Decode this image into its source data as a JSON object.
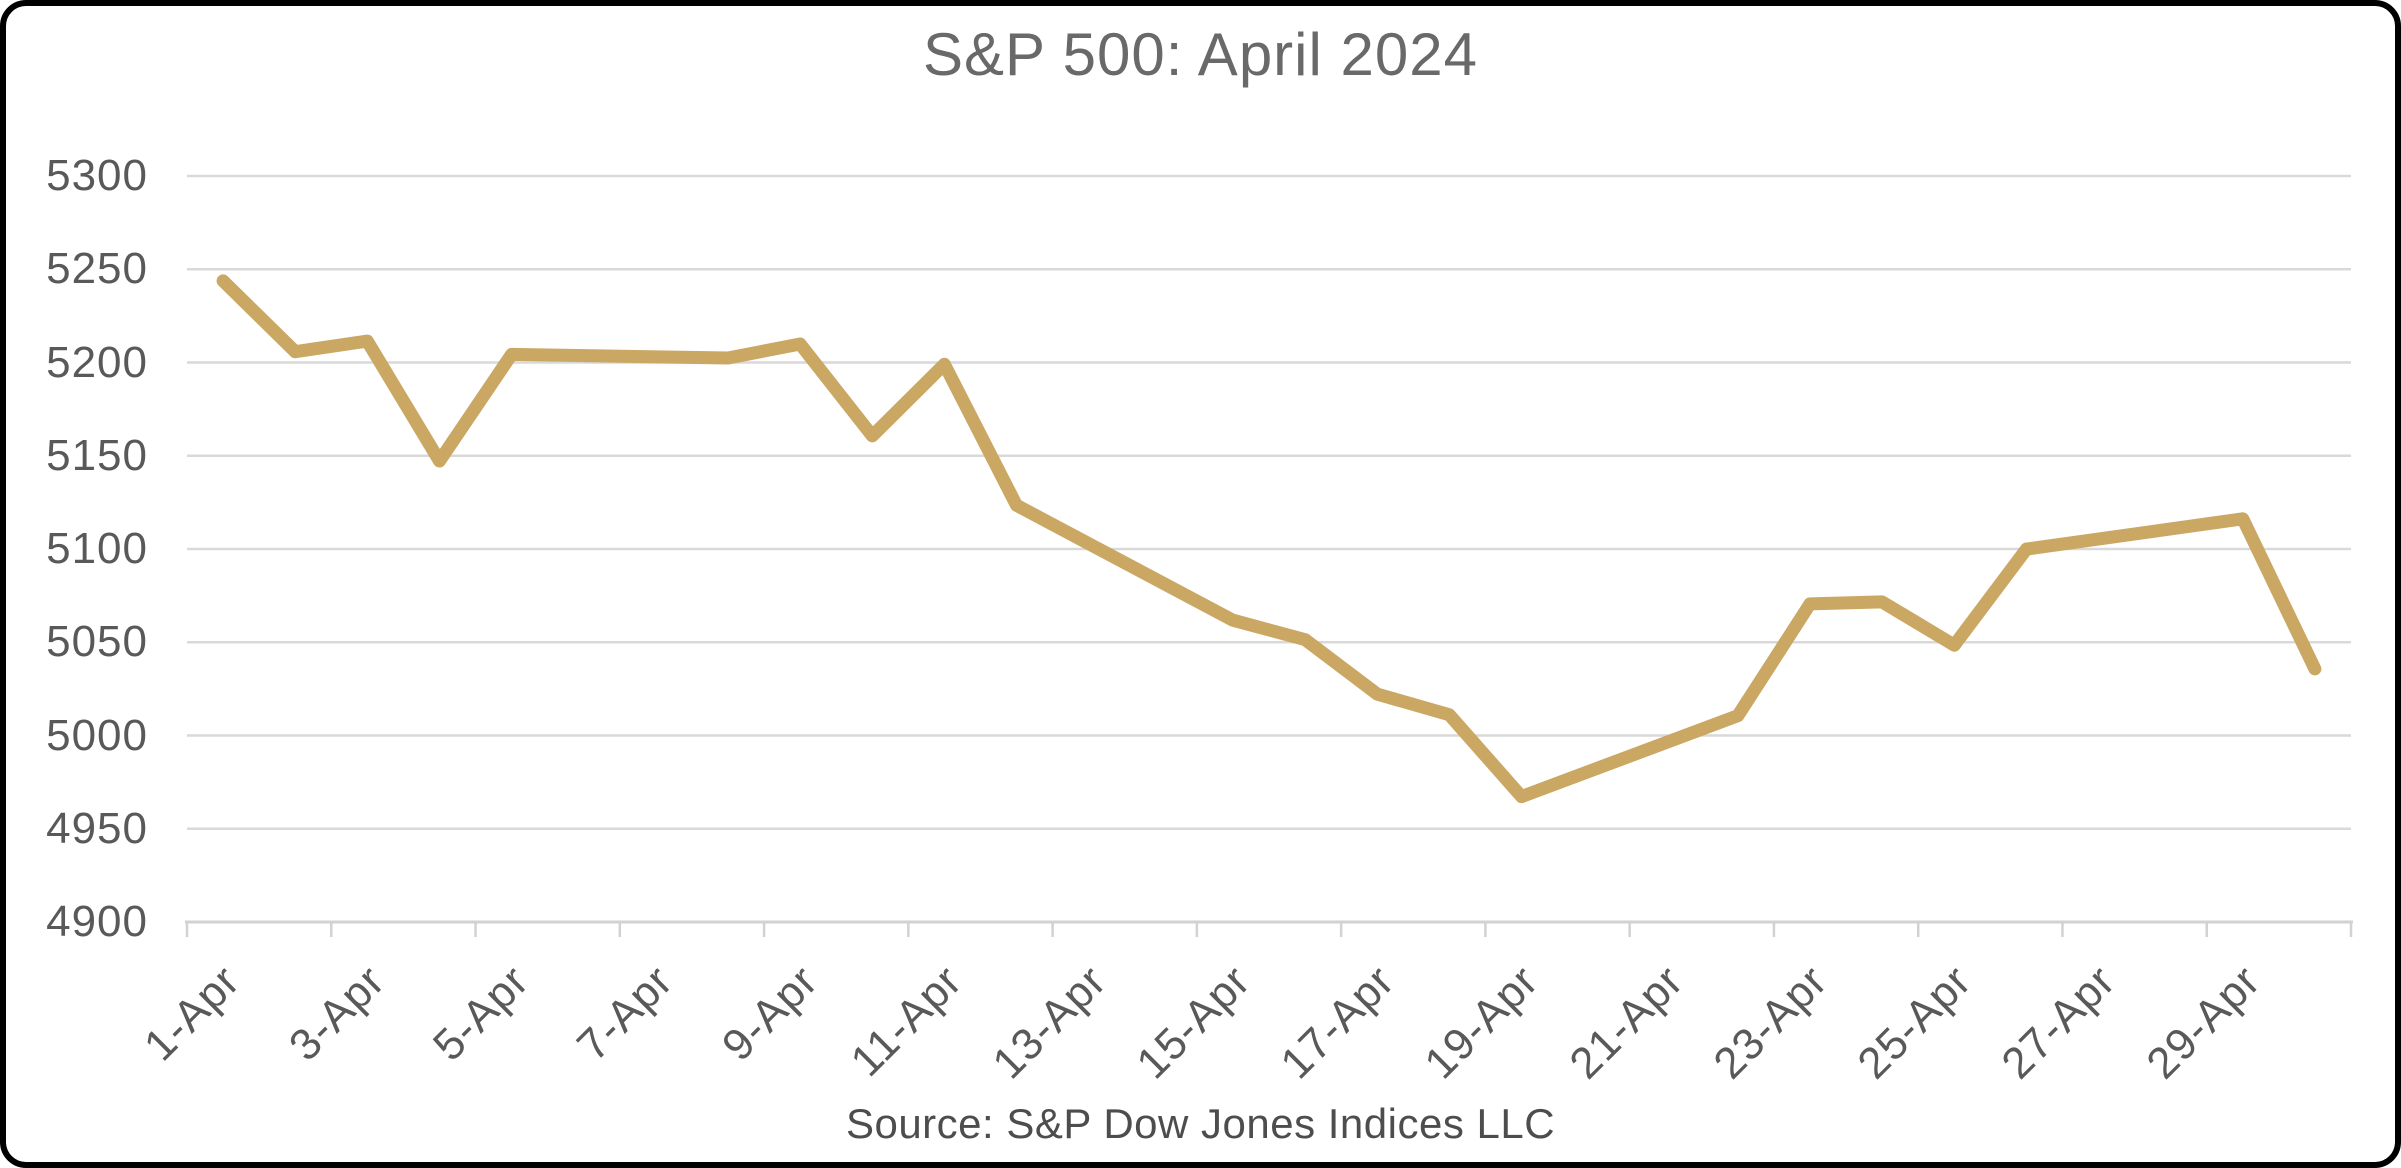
{
  "frame": {
    "border_color": "#000000",
    "background_color": "#ffffff"
  },
  "chart_data": {
    "type": "line",
    "title": "S&P 500: April 2024",
    "source_note": "Source: S&P Dow Jones Indices LLC",
    "grid": {
      "horizontal": true,
      "vertical": false,
      "color": "#D9D9D9"
    },
    "axis_color": "#D2D2D2",
    "text_colors": {
      "title": "#696969",
      "axis_labels": "#595959",
      "source": "#4D4D4D"
    },
    "y_axis": {
      "min": 4900,
      "max": 5300,
      "ticks": [
        5300,
        5250,
        5200,
        5150,
        5100,
        5050,
        5000,
        4950,
        4900
      ]
    },
    "x_axis": {
      "categories_days": 30,
      "label_days": [
        1,
        3,
        5,
        7,
        9,
        11,
        13,
        15,
        17,
        19,
        21,
        23,
        25,
        27,
        29
      ],
      "tick_labels": [
        "1-Apr",
        "3-Apr",
        "5-Apr",
        "7-Apr",
        "9-Apr",
        "11-Apr",
        "13-Apr",
        "15-Apr",
        "17-Apr",
        "19-Apr",
        "21-Apr",
        "23-Apr",
        "25-Apr",
        "27-Apr",
        "29-Apr"
      ]
    },
    "series": [
      {
        "name": "S&P 500",
        "color": "#CAA763",
        "points": [
          {
            "date": "1-Apr",
            "day": 1,
            "close": 5243.77
          },
          {
            "date": "2-Apr",
            "day": 2,
            "close": 5205.81
          },
          {
            "date": "3-Apr",
            "day": 3,
            "close": 5211.49
          },
          {
            "date": "4-Apr",
            "day": 4,
            "close": 5147.21
          },
          {
            "date": "5-Apr",
            "day": 5,
            "close": 5204.34
          },
          {
            "date": "8-Apr",
            "day": 8,
            "close": 5202.39
          },
          {
            "date": "9-Apr",
            "day": 9,
            "close": 5209.91
          },
          {
            "date": "10-Apr",
            "day": 10,
            "close": 5160.64
          },
          {
            "date": "11-Apr",
            "day": 11,
            "close": 5199.06
          },
          {
            "date": "12-Apr",
            "day": 12,
            "close": 5123.41
          },
          {
            "date": "15-Apr",
            "day": 15,
            "close": 5061.82
          },
          {
            "date": "16-Apr",
            "day": 16,
            "close": 5051.41
          },
          {
            "date": "17-Apr",
            "day": 17,
            "close": 5022.21
          },
          {
            "date": "18-Apr",
            "day": 18,
            "close": 5011.12
          },
          {
            "date": "19-Apr",
            "day": 19,
            "close": 4967.23
          },
          {
            "date": "22-Apr",
            "day": 22,
            "close": 5010.6
          },
          {
            "date": "23-Apr",
            "day": 23,
            "close": 5070.55
          },
          {
            "date": "24-Apr",
            "day": 24,
            "close": 5071.63
          },
          {
            "date": "25-Apr",
            "day": 25,
            "close": 5048.42
          },
          {
            "date": "26-Apr",
            "day": 26,
            "close": 5099.96
          },
          {
            "date": "29-Apr",
            "day": 29,
            "close": 5116.17
          },
          {
            "date": "30-Apr",
            "day": 30,
            "close": 5035.69
          }
        ]
      }
    ]
  }
}
